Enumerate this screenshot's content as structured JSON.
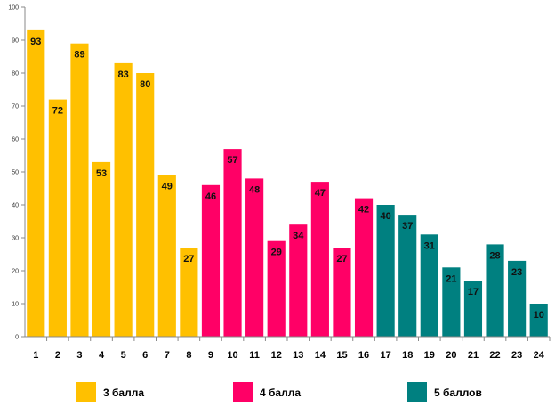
{
  "chart_data": {
    "type": "bar",
    "title": "",
    "xlabel": "",
    "ylabel": "",
    "ylim": [
      0,
      100
    ],
    "y_ticks": [
      0,
      10,
      20,
      30,
      40,
      50,
      60,
      70,
      80,
      90,
      100
    ],
    "grid": false,
    "legend_position": "bottom",
    "categories": [
      "1",
      "2",
      "3",
      "4",
      "5",
      "6",
      "7",
      "8",
      "9",
      "10",
      "11",
      "12",
      "13",
      "14",
      "15",
      "16",
      "17",
      "18",
      "19",
      "20",
      "21",
      "22",
      "23",
      "24"
    ],
    "values": [
      93,
      72,
      89,
      53,
      83,
      80,
      49,
      27,
      46,
      57,
      48,
      29,
      34,
      47,
      27,
      42,
      40,
      37,
      31,
      21,
      17,
      28,
      23,
      10
    ],
    "groups": [
      {
        "name": "3 балла",
        "color": "#FFC000",
        "from": 0,
        "to": 7
      },
      {
        "name": "4 балла",
        "color": "#FF0066",
        "from": 8,
        "to": 15
      },
      {
        "name": "5 баллов",
        "color": "#008080",
        "from": 16,
        "to": 23
      }
    ]
  }
}
